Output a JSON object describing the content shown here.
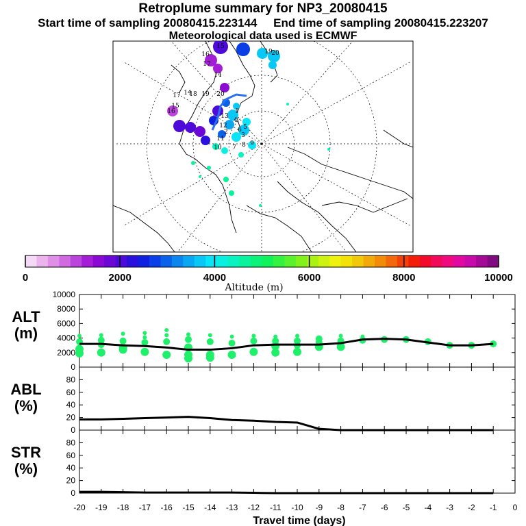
{
  "header": {
    "title": "Retroplume summary for NP3_20080415",
    "start_label": "Start time of sampling 20080415.223144",
    "end_label": "End time of sampling 20080415.223207",
    "met_label": "Meteorological data used is ECMWF"
  },
  "colorbar": {
    "ticks": [
      "0",
      "2000",
      "4000",
      "6000",
      "8000",
      "10000"
    ],
    "label": "Altitude (m)",
    "colors": [
      "#f6d9f6",
      "#ecb3ec",
      "#e08fe6",
      "#d06ae0",
      "#bb44dc",
      "#a41ed8",
      "#8a0ad4",
      "#6c08d6",
      "#4d0ad8",
      "#2a10dc",
      "#1020e0",
      "#0a3ee6",
      "#0a62ea",
      "#0a86ee",
      "#0aa8f2",
      "#0ac8f6",
      "#0ae4f6",
      "#0af0e0",
      "#0af2c0",
      "#0af29c",
      "#0af278",
      "#10f25a",
      "#34f240",
      "#5af22c",
      "#82f21c",
      "#aaf214",
      "#cef210",
      "#eef20c",
      "#f2e20a",
      "#f2c80a",
      "#f2aa0a",
      "#f28a0a",
      "#f2680a",
      "#f2420a",
      "#f21e0a",
      "#f20a2a",
      "#f20a5a",
      "#f00a80",
      "#e00aa0",
      "#c80aa8",
      "#a40a96",
      "#800a80"
    ]
  },
  "map": {
    "labels": [
      "16",
      "15",
      "17",
      "14",
      "18",
      "19",
      "20",
      "15",
      "16",
      "17",
      "14",
      "13",
      "12",
      "11",
      "10",
      "9",
      "8",
      "7",
      "6",
      "5",
      "4",
      "3",
      "2",
      "1",
      "19",
      "20"
    ]
  },
  "chart_data": [
    {
      "type": "line",
      "panel": "ALT",
      "ylabel": "ALT\n(m)",
      "ylabel_lines": [
        "ALT",
        "(m)"
      ],
      "ylim": [
        0,
        10000
      ],
      "yticks": [
        "0",
        "2000",
        "4000",
        "6000",
        "8000",
        "10000"
      ],
      "x": [
        -20,
        -19,
        -18,
        -17,
        -16,
        -15,
        -14,
        -13,
        -12,
        -11,
        -10,
        -9,
        -8,
        -7,
        -6,
        -5,
        -4,
        -3,
        -2,
        -1
      ],
      "median_altitude": [
        3200,
        3200,
        3000,
        2900,
        2700,
        2400,
        2400,
        2600,
        3000,
        3100,
        3100,
        3100,
        3300,
        3800,
        3900,
        3800,
        3400,
        3000,
        3000,
        3200
      ],
      "clusters": [
        {
          "x": -20,
          "alts": [
            1900,
            2500,
            3500,
            4300
          ]
        },
        {
          "x": -19,
          "alts": [
            2000,
            3100,
            3700,
            4400
          ]
        },
        {
          "x": -18,
          "alts": [
            2400,
            2700,
            3600,
            4600
          ]
        },
        {
          "x": -17,
          "alts": [
            2100,
            3400,
            4100,
            4700
          ]
        },
        {
          "x": -16,
          "alts": [
            1700,
            3500,
            4400,
            5100
          ]
        },
        {
          "x": -15,
          "alts": [
            1200,
            1700,
            2700,
            3800,
            4500
          ]
        },
        {
          "x": -14,
          "alts": [
            1300,
            1700,
            3500,
            4400
          ]
        },
        {
          "x": -13,
          "alts": [
            1700,
            3300,
            4200
          ]
        },
        {
          "x": -12,
          "alts": [
            2100,
            3600,
            4300
          ]
        },
        {
          "x": -11,
          "alts": [
            2000,
            2900,
            3600,
            4200
          ]
        },
        {
          "x": -10,
          "alts": [
            2100,
            3000,
            3600,
            4300
          ]
        },
        {
          "x": -9,
          "alts": [
            2800,
            3400,
            3900
          ]
        },
        {
          "x": -8,
          "alts": [
            2800,
            3600,
            4300
          ]
        },
        {
          "x": -7,
          "alts": [
            3700,
            4200
          ]
        },
        {
          "x": -6,
          "alts": [
            3800,
            4000
          ]
        },
        {
          "x": -5,
          "alts": [
            3800
          ]
        },
        {
          "x": -4,
          "alts": [
            3500
          ]
        },
        {
          "x": -3,
          "alts": [
            3000
          ]
        },
        {
          "x": -2,
          "alts": [
            3000
          ]
        },
        {
          "x": -1,
          "alts": [
            3200
          ]
        }
      ]
    },
    {
      "type": "line",
      "panel": "ABL",
      "ylabel": "ABL\n(%)",
      "ylabel_lines": [
        "ABL",
        "(%)"
      ],
      "ylim": [
        0,
        100
      ],
      "yticks": [
        "0",
        "20",
        "40",
        "60",
        "80"
      ],
      "x": [
        -20,
        -19,
        -18,
        -17,
        -16,
        -15,
        -14,
        -13,
        -12,
        -11,
        -10,
        -9,
        -8,
        -7,
        -6,
        -5,
        -4,
        -3,
        -2,
        -1
      ],
      "values": [
        17,
        17,
        18,
        19,
        20,
        21,
        19,
        16,
        15,
        13,
        12,
        2,
        0,
        0,
        0,
        0,
        0,
        0,
        0,
        0
      ]
    },
    {
      "type": "line",
      "panel": "STR",
      "ylabel": "STR\n(%)",
      "ylabel_lines": [
        "STR",
        "(%)"
      ],
      "ylim": [
        0,
        100
      ],
      "yticks": [
        "0",
        "20",
        "40",
        "60",
        "80"
      ],
      "x": [
        -20,
        -19,
        -18,
        -17,
        -16,
        -15,
        -14,
        -13,
        -12,
        -11,
        -10,
        -9,
        -8,
        -7,
        -6,
        -5,
        -4,
        -3,
        -2,
        -1
      ],
      "values": [
        2,
        2,
        1.5,
        1,
        1,
        1,
        1,
        1,
        0.5,
        0,
        0,
        0,
        0,
        0,
        0,
        0,
        0,
        0,
        0,
        0
      ]
    }
  ],
  "xaxis": {
    "ticks": [
      "-20",
      "-19",
      "-18",
      "-17",
      "-16",
      "-15",
      "-14",
      "-13",
      "-12",
      "-11",
      "-10",
      "-9",
      "-8",
      "-7",
      "-6",
      "-5",
      "-4",
      "-3",
      "-2",
      "-1",
      "0"
    ],
    "label": "Travel time (days)"
  },
  "style": {
    "dot_color": "#1ef06a",
    "line_color": "#000000"
  }
}
